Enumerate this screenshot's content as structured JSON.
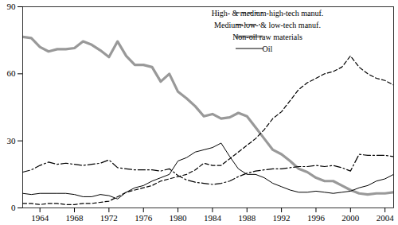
{
  "chart_data": {
    "type": "line",
    "x": [
      1962,
      1963,
      1964,
      1965,
      1966,
      1967,
      1968,
      1969,
      1970,
      1971,
      1972,
      1973,
      1974,
      1975,
      1976,
      1977,
      1978,
      1979,
      1980,
      1981,
      1982,
      1983,
      1984,
      1985,
      1986,
      1987,
      1988,
      1989,
      1990,
      1991,
      1992,
      1993,
      1994,
      1995,
      1996,
      1997,
      1998,
      1999,
      2000,
      2001,
      2002,
      2003,
      2004,
      2005
    ],
    "xlim": [
      1962,
      2005
    ],
    "xticks": [
      1964,
      1968,
      1972,
      1976,
      1980,
      1984,
      1988,
      1992,
      1996,
      2000,
      2004
    ],
    "ylim": [
      0,
      90
    ],
    "yticks": [
      0,
      30,
      60,
      90
    ],
    "grid": false,
    "legend": "top-right",
    "series": [
      {
        "name": "High- & medium-high-tech manuf.",
        "color": "#000000",
        "line_style": "dashed",
        "values": [
          2,
          2,
          1.5,
          2,
          2,
          1.5,
          1.5,
          2,
          2,
          2.5,
          3,
          5,
          7,
          8,
          9,
          10,
          12,
          13,
          14,
          15,
          17,
          20,
          19,
          19,
          22,
          25,
          28,
          31,
          35,
          40,
          43,
          48,
          53,
          56,
          58,
          60,
          61,
          63,
          68,
          63,
          60,
          58,
          57,
          55
        ]
      },
      {
        "name": "Medium-low- & low-tech manuf.",
        "color": "#000000",
        "line_style": "dashdot",
        "values": [
          16,
          17,
          19,
          20.5,
          19.5,
          20,
          19.5,
          19,
          19.5,
          20,
          21.5,
          18,
          17.5,
          17,
          17,
          17,
          16.5,
          17.5,
          14.5,
          12.5,
          11.5,
          11,
          10.5,
          11,
          12,
          14,
          15.5,
          16.5,
          17,
          17.5,
          17.5,
          18,
          18.5,
          18.5,
          19,
          18.5,
          19,
          18,
          16.5,
          24,
          23.5,
          23.5,
          23.5,
          23
        ]
      },
      {
        "name": "Non-oil raw materials",
        "color": "#999999",
        "line_style": "solid",
        "values": [
          76.5,
          76,
          72,
          70,
          71,
          71,
          71.5,
          74.5,
          73,
          70.5,
          67.5,
          74.5,
          68,
          64,
          64,
          63,
          56.5,
          60,
          52,
          49,
          45.5,
          41,
          42,
          40,
          40.5,
          42.5,
          41,
          36,
          31,
          26,
          24,
          21,
          17.5,
          16,
          13.5,
          12,
          12,
          10,
          8,
          6.5,
          6,
          6.5,
          6.5,
          7
        ]
      },
      {
        "name": "Oil",
        "color": "#000000",
        "line_style": "solid",
        "values": [
          6.5,
          6,
          6.5,
          6.5,
          6.5,
          6.5,
          6,
          5,
          5,
          6,
          5.5,
          4,
          7,
          9,
          10,
          12,
          13.5,
          15,
          21,
          22.5,
          25,
          26,
          27,
          29,
          23,
          17.5,
          15,
          15,
          13.5,
          11,
          9.5,
          8,
          7,
          7,
          7.5,
          7,
          6.5,
          7,
          7.5,
          9,
          10,
          12,
          13,
          15
        ]
      }
    ]
  }
}
